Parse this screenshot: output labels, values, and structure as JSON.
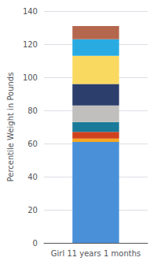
{
  "chart_data": {
    "type": "bar",
    "stacked": true,
    "categories": [
      "Girl 11 years 1 months"
    ],
    "series": [
      {
        "color": "#4A90D9",
        "values": [
          61
        ]
      },
      {
        "color": "#F5A623",
        "values": [
          2
        ]
      },
      {
        "color": "#D0421D",
        "values": [
          4
        ]
      },
      {
        "color": "#1A7A9A",
        "values": [
          6
        ]
      },
      {
        "color": "#C0BFBD",
        "values": [
          10
        ]
      },
      {
        "color": "#2C3E6B",
        "values": [
          13
        ]
      },
      {
        "color": "#FAD961",
        "values": [
          17
        ]
      },
      {
        "color": "#29ABE2",
        "values": [
          10
        ]
      },
      {
        "color": "#B5674D",
        "values": [
          8
        ]
      }
    ],
    "ylabel": "Percentile Weight in Pounds",
    "ylim": [
      0,
      140
    ],
    "yticks": [
      0,
      20,
      40,
      60,
      80,
      100,
      120,
      140
    ],
    "grid": true
  }
}
